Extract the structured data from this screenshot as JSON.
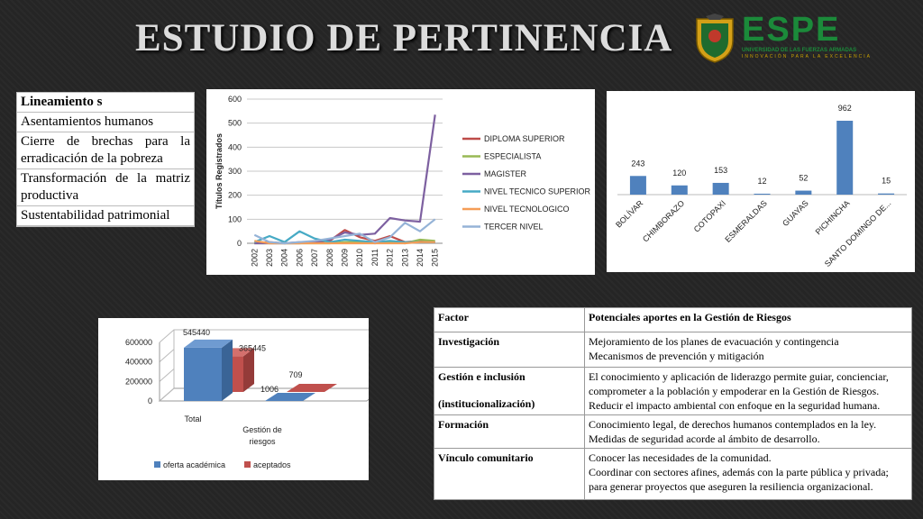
{
  "title": "ESTUDIO DE PERTINENCIA",
  "logo": {
    "brand": "ESPE",
    "subtitle": "UNIVERSIDAD DE LAS FUERZAS ARMADAS",
    "tagline": "INNOVACIÓN PARA LA EXCELENCIA",
    "color": "#1b8a3a"
  },
  "lineamientos": {
    "header": "Lineamiento s",
    "items": [
      "Asentamientos humanos",
      "Cierre de brechas para la erradicación de la pobreza",
      "Transformación de la matriz productiva",
      "Sustentabilidad patrimonial"
    ]
  },
  "factors_table": {
    "headers": [
      "Factor",
      "Potenciales aportes en la Gestión de Riesgos"
    ],
    "rows": [
      {
        "factor": "Investigación",
        "factor2": "",
        "aporte": [
          "Mejoramiento de los planes de evacuación y contingencia",
          "Mecanismos de prevención y mitigación"
        ]
      },
      {
        "factor": "Gestión e inclusión",
        "factor2": "(institucionalización)",
        "aporte": [
          "El conocimiento y aplicación de liderazgo permite guiar, concienciar, comprometer a la población y empoderar en la Gestión de Riesgos.",
          "Reducir el impacto ambiental con enfoque en la seguridad humana."
        ]
      },
      {
        "factor": "Formación",
        "factor2": "",
        "aporte": [
          "Conocimiento legal, de derechos humanos contemplados en la ley.",
          "Medidas de seguridad acorde al ámbito de desarrollo."
        ]
      },
      {
        "factor": "Vínculo comunitario",
        "factor2": "",
        "aporte": [
          "Conocer las necesidades de la comunidad.",
          "Coordinar con sectores afines, además con la parte pública y privada; para generar proyectos que aseguren la resiliencia organizacional."
        ]
      }
    ]
  },
  "chart_data": [
    {
      "type": "line",
      "title": "",
      "ylabel": "Títulos Registrados",
      "xlabel": "",
      "ylim": [
        0,
        600
      ],
      "yticks": [
        0,
        100,
        200,
        300,
        400,
        500,
        600
      ],
      "grid": true,
      "legend": "right",
      "x": [
        "2002",
        "2003",
        "2004",
        "2006",
        "2007",
        "2008",
        "2009",
        "2010",
        "2011",
        "2012",
        "2013",
        "2014",
        "2015"
      ],
      "series": [
        {
          "name": "DIPLOMA SUPERIOR",
          "color": "#be4b48",
          "values": [
            0,
            5,
            0,
            0,
            5,
            10,
            55,
            25,
            10,
            30,
            5,
            10,
            5
          ]
        },
        {
          "name": "ESPECIALISTA",
          "color": "#98b954",
          "values": [
            0,
            0,
            0,
            0,
            0,
            0,
            5,
            5,
            0,
            5,
            0,
            15,
            10
          ]
        },
        {
          "name": "MAGISTER",
          "color": "#7d60a0",
          "values": [
            0,
            0,
            0,
            5,
            5,
            15,
            45,
            35,
            40,
            105,
            95,
            90,
            535
          ]
        },
        {
          "name": "NIVEL TECNICO SUPERIOR",
          "color": "#46aac5",
          "values": [
            5,
            30,
            5,
            50,
            20,
            5,
            15,
            10,
            5,
            10,
            5,
            5,
            5
          ]
        },
        {
          "name": "NIVEL TECNOLOGICO",
          "color": "#f59d56",
          "values": [
            10,
            0,
            0,
            0,
            0,
            0,
            0,
            0,
            0,
            0,
            0,
            5,
            5
          ]
        },
        {
          "name": "TERCER NIVEL",
          "color": "#95b3d7",
          "values": [
            35,
            5,
            0,
            5,
            10,
            20,
            30,
            40,
            5,
            25,
            85,
            50,
            100
          ]
        }
      ]
    },
    {
      "type": "bar",
      "title": "",
      "color": "#4f81bd",
      "categories": [
        "BOLÍVAR",
        "CHIMBORAZO",
        "COTOPAXI",
        "ESMERALDAS",
        "GUAYAS",
        "PICHINCHA",
        "SANTO DOMINGO DE..."
      ],
      "values": [
        243,
        120,
        153,
        12,
        52,
        962,
        15
      ]
    },
    {
      "type": "bar",
      "title": "",
      "subtype": "3d-column",
      "categories": [
        "Total",
        "Gestión de riesgos"
      ],
      "yticks": [
        0,
        200000,
        400000,
        600000
      ],
      "ylim": [
        0,
        600000
      ],
      "legend": "bottom",
      "series": [
        {
          "name": "oferta académica",
          "color": "#4f81bd",
          "values": [
            545440,
            1006
          ]
        },
        {
          "name": "aceptados",
          "color": "#c0504d",
          "values": [
            365445,
            709
          ]
        }
      ]
    }
  ]
}
